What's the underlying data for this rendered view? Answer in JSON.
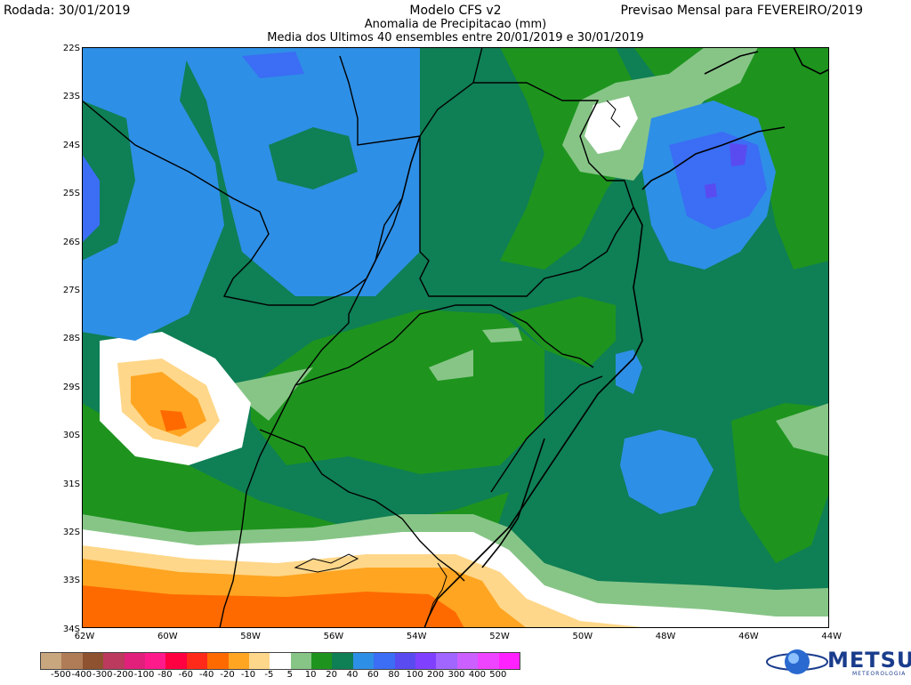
{
  "header": {
    "run_date": "Rodada: 30/01/2019",
    "model": "Modelo CFS v2",
    "subtitle": "Anomalia de Precipitacao (mm)",
    "subtitle2": "Media dos Ultimos 40 ensembles entre 20/01/2019 e 30/01/2019",
    "forecast": "Previsao Mensal para FEVEREIRO/2019"
  },
  "axes": {
    "lat_labels": [
      "22S",
      "23S",
      "24S",
      "25S",
      "26S",
      "27S",
      "28S",
      "29S",
      "30S",
      "31S",
      "32S",
      "33S",
      "34S"
    ],
    "lon_labels": [
      "62W",
      "60W",
      "58W",
      "56W",
      "54W",
      "52W",
      "50W",
      "48W",
      "46W",
      "44W"
    ]
  },
  "legend": {
    "labels": [
      "-500",
      "-400",
      "-300",
      "-200",
      "-100",
      "-80",
      "-60",
      "-40",
      "-20",
      "-10",
      "-5",
      "5",
      "10",
      "20",
      "40",
      "60",
      "80",
      "100",
      "200",
      "300",
      "400",
      "500"
    ],
    "colors": [
      "#c8a67e",
      "#b07c57",
      "#8e5230",
      "#bb3a5e",
      "#e0207a",
      "#ff1a8c",
      "#ff0040",
      "#ff2a1a",
      "#ff6a00",
      "#ffa521",
      "#ffd78a",
      "#ffffff",
      "#87c587",
      "#1e941e",
      "#0f7f55",
      "#2e8fe6",
      "#3b6df5",
      "#5a4bf0",
      "#8040ff",
      "#a066ff",
      "#cc5fff",
      "#ee44ff",
      "#ff22ff"
    ]
  },
  "logo": {
    "name": "METSUL",
    "sub": "METEOROLOGIA"
  },
  "colors": {
    "green_dark": "#0f7f55",
    "green": "#1e941e",
    "green_light": "#87c587",
    "blue_light": "#2e8fe6",
    "blue": "#3b6df5",
    "violet": "#5a4bf0",
    "orange_light": "#ffd78a",
    "orange": "#ffa521",
    "orange_dark": "#ff6a00"
  }
}
